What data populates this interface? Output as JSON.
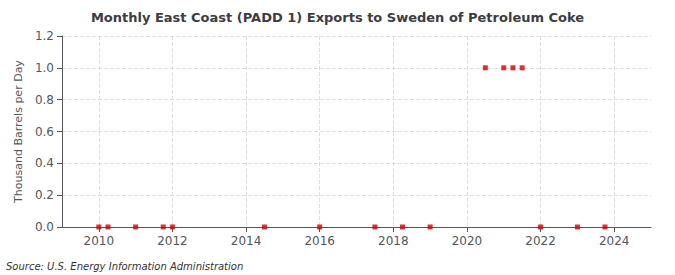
{
  "chart_data": {
    "type": "scatter",
    "title": "Monthly East Coast (PADD 1) Exports to Sweden of Petroleum Coke",
    "ylabel": "Thousand Barrels per Day",
    "source": "Source: U.S. Energy Information Administration",
    "x": [
      2010.0,
      2010.25,
      2011.0,
      2011.75,
      2012.0,
      2014.5,
      2016.0,
      2017.5,
      2018.25,
      2019.0,
      2020.5,
      2021.0,
      2021.25,
      2021.5,
      2022.0,
      2023.0,
      2023.75
    ],
    "values": [
      0.0,
      0.0,
      0.0,
      0.0,
      0.0,
      0.0,
      0.0,
      0.0,
      0.0,
      0.0,
      1.0,
      1.0,
      1.0,
      1.0,
      0.0,
      0.0,
      0.0
    ],
    "color": "#cc0000",
    "marker": "square",
    "xlim": [
      2009.0,
      2025.0
    ],
    "xticks": [
      2010,
      2012,
      2014,
      2016,
      2018,
      2020,
      2022,
      2024
    ],
    "ylim": [
      0.0,
      1.2
    ],
    "yticks": [
      {
        "value": 0.0,
        "label": "0.0"
      },
      0.2,
      0.4,
      0.6,
      0.8,
      {
        "value": 1.0,
        "label": "1.0"
      },
      1.2
    ],
    "grid": true
  }
}
